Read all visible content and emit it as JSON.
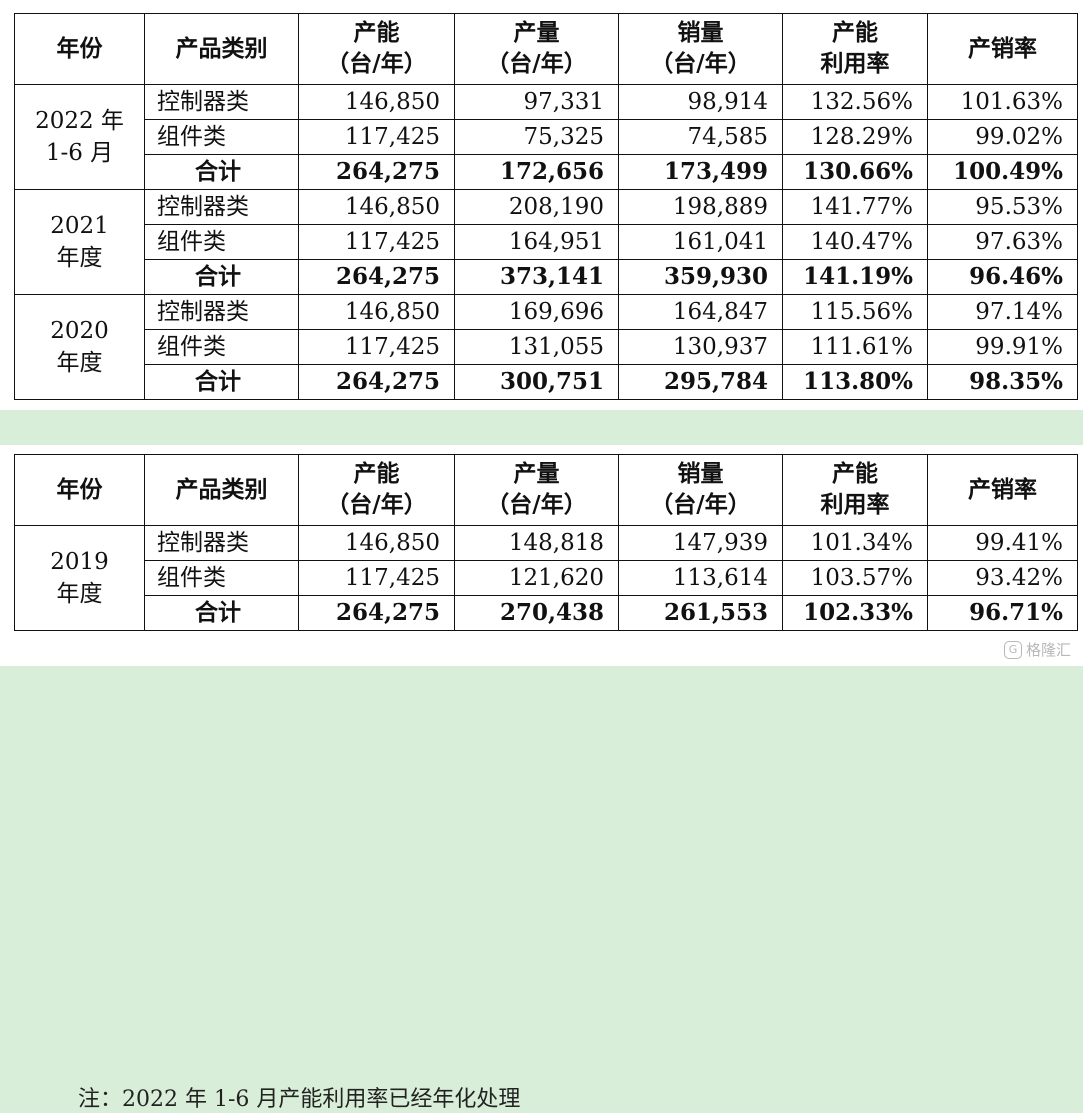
{
  "headers": {
    "year": "年份",
    "category": "产品类别",
    "capacity_l1": "产能",
    "capacity_l2": "（台/年）",
    "output_l1": "产量",
    "output_l2": "（台/年）",
    "sales_l1": "销量",
    "sales_l2": "（台/年）",
    "utilization_l1": "产能",
    "utilization_l2": "利用率",
    "sell_through": "产销率"
  },
  "table1": {
    "groups": [
      {
        "year_l1": "2022 年",
        "year_l2": "1-6 月",
        "rows": [
          {
            "category": "控制器类",
            "capacity": "146,850",
            "output": "97,331",
            "sales": "98,914",
            "utilization": "132.56%",
            "sell_through": "101.63%"
          },
          {
            "category": "组件类",
            "capacity": "117,425",
            "output": "75,325",
            "sales": "74,585",
            "utilization": "128.29%",
            "sell_through": "99.02%"
          },
          {
            "category": "合计",
            "capacity": "264,275",
            "output": "172,656",
            "sales": "173,499",
            "utilization": "130.66%",
            "sell_through": "100.49%"
          }
        ]
      },
      {
        "year_l1": "2021",
        "year_l2": "年度",
        "rows": [
          {
            "category": "控制器类",
            "capacity": "146,850",
            "output": "208,190",
            "sales": "198,889",
            "utilization": "141.77%",
            "sell_through": "95.53%"
          },
          {
            "category": "组件类",
            "capacity": "117,425",
            "output": "164,951",
            "sales": "161,041",
            "utilization": "140.47%",
            "sell_through": "97.63%"
          },
          {
            "category": "合计",
            "capacity": "264,275",
            "output": "373,141",
            "sales": "359,930",
            "utilization": "141.19%",
            "sell_through": "96.46%"
          }
        ]
      },
      {
        "year_l1": "2020",
        "year_l2": "年度",
        "rows": [
          {
            "category": "控制器类",
            "capacity": "146,850",
            "output": "169,696",
            "sales": "164,847",
            "utilization": "115.56%",
            "sell_through": "97.14%"
          },
          {
            "category": "组件类",
            "capacity": "117,425",
            "output": "131,055",
            "sales": "130,937",
            "utilization": "111.61%",
            "sell_through": "99.91%"
          },
          {
            "category": "合计",
            "capacity": "264,275",
            "output": "300,751",
            "sales": "295,784",
            "utilization": "113.80%",
            "sell_through": "98.35%"
          }
        ]
      }
    ]
  },
  "table2": {
    "groups": [
      {
        "year_l1": "2019",
        "year_l2": "年度",
        "rows": [
          {
            "category": "控制器类",
            "capacity": "146,850",
            "output": "148,818",
            "sales": "147,939",
            "utilization": "101.34%",
            "sell_through": "99.41%"
          },
          {
            "category": "组件类",
            "capacity": "117,425",
            "output": "121,620",
            "sales": "113,614",
            "utilization": "103.57%",
            "sell_through": "93.42%"
          },
          {
            "category": "合计",
            "capacity": "264,275",
            "output": "270,438",
            "sales": "261,553",
            "utilization": "102.33%",
            "sell_through": "96.71%"
          }
        ]
      }
    ]
  },
  "note": "注：2022 年 1-6 月产能利用率已经年化处理",
  "watermark": {
    "text": "格隆汇",
    "icon": "gelonghui-logo-icon"
  },
  "colors": {
    "background": "#d9eed8",
    "panel": "#ffffff",
    "border": "#111111"
  }
}
